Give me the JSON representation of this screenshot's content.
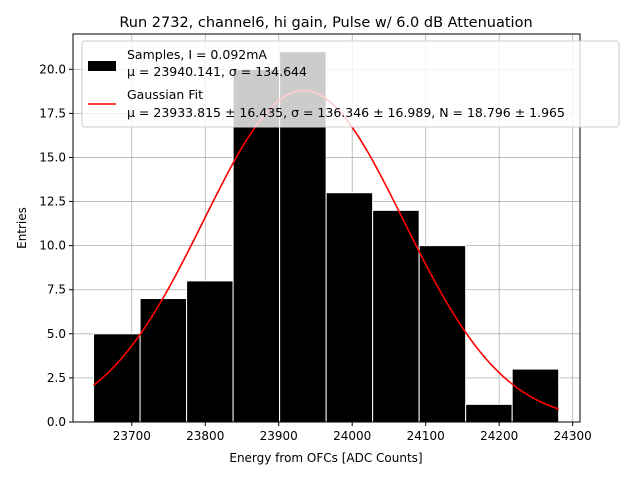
{
  "chart_data": {
    "type": "bar",
    "title": "Run 2732, channel6, hi gain, Pulse w/ 6.0 dB Attenuation",
    "xlabel": "Energy from OFCs [ADC Counts]",
    "ylabel": "Entries",
    "xlim": [
      23620,
      24310
    ],
    "ylim": [
      0,
      22
    ],
    "xticks": [
      23700,
      23800,
      23900,
      24000,
      24100,
      24200,
      24300
    ],
    "yticks": [
      0.0,
      2.5,
      5.0,
      7.5,
      10.0,
      12.5,
      15.0,
      17.5,
      20.0
    ],
    "xtick_labels": [
      "23700",
      "23800",
      "23900",
      "24000",
      "24100",
      "24200",
      "24300"
    ],
    "ytick_labels": [
      "0.0",
      "2.5",
      "5.0",
      "7.5",
      "10.0",
      "12.5",
      "15.0",
      "17.5",
      "20.0"
    ],
    "grid": true,
    "legend_position": "top-right",
    "bin_edges": [
      23648,
      23711.3,
      23774.6,
      23837.9,
      23901.2,
      23964.5,
      24027.8,
      24091.1,
      24154.4,
      24217.7,
      24281
    ],
    "series": [
      {
        "name": "Samples, I = 0.092mA",
        "kind": "histogram",
        "color": "#000000",
        "stats_label": "μ = 23940.141, σ = 134.644",
        "values": [
          5,
          7,
          8,
          20,
          21,
          13,
          12,
          10,
          1,
          3
        ]
      },
      {
        "name": "Gaussian Fit",
        "kind": "line",
        "color": "#ff0000",
        "stats_label": "μ = 23933.815 ± 16.435, σ = 136.346 ± 16.989, N = 18.796 ± 1.965",
        "mu": 23933.815,
        "sigma": 136.346,
        "amplitude": 18.796,
        "x_range": [
          23648,
          24281
        ]
      }
    ]
  }
}
